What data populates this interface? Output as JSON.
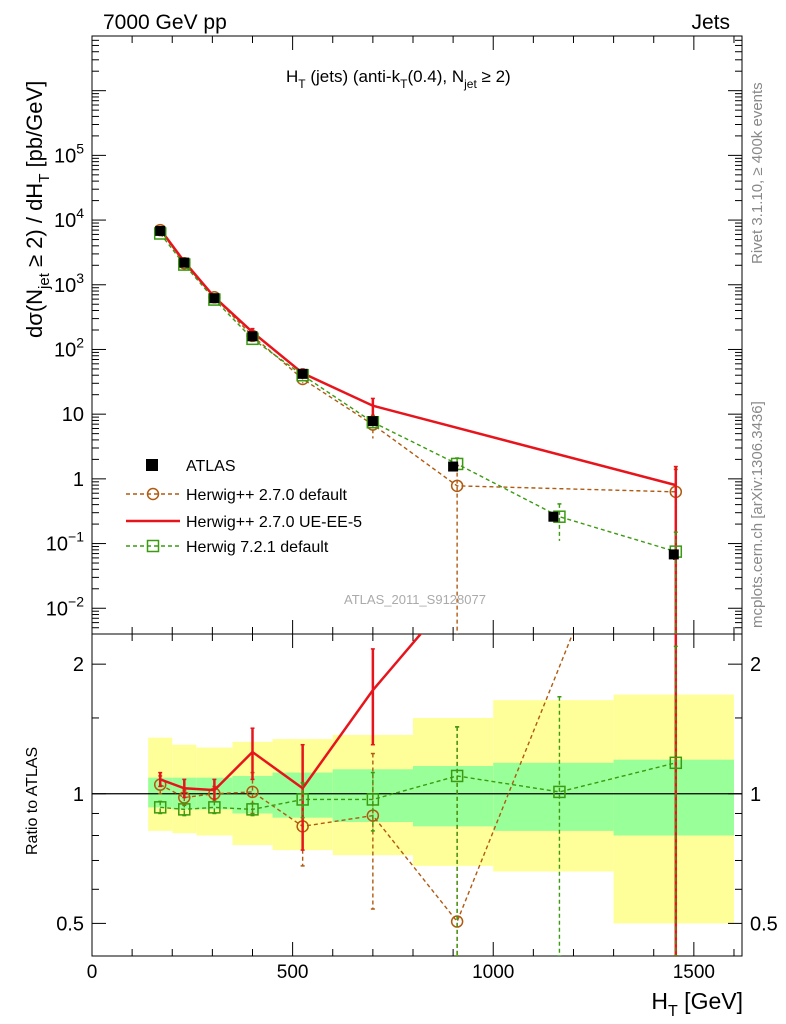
{
  "header": {
    "left": "7000 GeV pp",
    "right": "Jets"
  },
  "side_labels": {
    "rivet": "Rivet 3.1.10, ≥ 400k events",
    "mcplots": "mcplots.cern.ch [arXiv:1306.3436]"
  },
  "watermark": "ATLAS_2011_S9128077",
  "chart_data": {
    "type": "line",
    "title_parts": {
      "a": "H",
      "a_sub": "T",
      "b": " (jets) (anti-k",
      "b_sub": "T",
      "c": "(0.4), N",
      "c_sub": "jet",
      "d": " ≥ 2)"
    },
    "ylabel_parts": {
      "a": "dσ(N",
      "a_sub": "jet",
      "b": " ≥ 2) / dH",
      "b_sub": "T",
      "c": " [pb/GeV]"
    },
    "xlabel_parts": {
      "a": "H",
      "a_sub": "T",
      "b": " [GeV]"
    },
    "ratio_ylabel": "Ratio to ATLAS",
    "x_range": [
      0,
      1620
    ],
    "x_ticks": [
      {
        "v": 0,
        "label": "0"
      },
      {
        "v": 500,
        "label": "500"
      },
      {
        "v": 1000,
        "label": "1000"
      },
      {
        "v": 1500,
        "label": "1500"
      }
    ],
    "y_scale": "log",
    "y_range": [
      0.004,
      7000000
    ],
    "y_ticks": [
      {
        "v": 0.01,
        "base": "10",
        "exp": "−2"
      },
      {
        "v": 0.1,
        "base": "10",
        "exp": "−1"
      },
      {
        "v": 1,
        "base": "1",
        "exp": ""
      },
      {
        "v": 10,
        "base": "10",
        "exp": ""
      },
      {
        "v": 100,
        "base": "10",
        "exp": "2"
      },
      {
        "v": 1000,
        "base": "10",
        "exp": "3"
      },
      {
        "v": 10000,
        "base": "10",
        "exp": "4"
      },
      {
        "v": 100000,
        "base": "10",
        "exp": "5"
      }
    ],
    "ratio_range": [
      0.42,
      2.35
    ],
    "ratio_ticks": [
      {
        "v": 0.5,
        "label": "0.5"
      },
      {
        "v": 1,
        "label": "1"
      },
      {
        "v": 2,
        "label": "2"
      }
    ],
    "bins": [
      {
        "lo": 140,
        "hi": 200
      },
      {
        "lo": 200,
        "hi": 260
      },
      {
        "lo": 260,
        "hi": 350
      },
      {
        "lo": 350,
        "hi": 450
      },
      {
        "lo": 450,
        "hi": 600
      },
      {
        "lo": 600,
        "hi": 800
      },
      {
        "lo": 800,
        "hi": 1000
      },
      {
        "lo": 1000,
        "hi": 1300
      },
      {
        "lo": 1300,
        "hi": 1600
      }
    ],
    "band_inner": [
      [
        0.93,
        1.09
      ],
      [
        0.92,
        1.09
      ],
      [
        0.92,
        1.09
      ],
      [
        0.9,
        1.1
      ],
      [
        0.88,
        1.12
      ],
      [
        0.86,
        1.14
      ],
      [
        0.84,
        1.16
      ],
      [
        0.82,
        1.18
      ],
      [
        0.8,
        1.2
      ]
    ],
    "band_outer": [
      [
        0.82,
        1.35
      ],
      [
        0.81,
        1.3
      ],
      [
        0.8,
        1.28
      ],
      [
        0.76,
        1.32
      ],
      [
        0.74,
        1.34
      ],
      [
        0.72,
        1.37
      ],
      [
        0.68,
        1.5
      ],
      [
        0.66,
        1.65
      ],
      [
        0.5,
        1.7
      ]
    ],
    "data": {
      "name": "ATLAS",
      "x": [
        170,
        230,
        305,
        400,
        525,
        700,
        900,
        1150,
        1450
      ],
      "y": [
        6800,
        2200,
        620,
        160,
        42,
        7.8,
        1.55,
        0.26,
        0.068
      ],
      "err": [
        300,
        80,
        25,
        8,
        3,
        0.6,
        0.16,
        0.03,
        0.012
      ]
    },
    "series": [
      {
        "name": "Herwig++ 2.7.0 default",
        "color": "#b05a10",
        "dash": "4,3",
        "marker": "circle",
        "x": [
          170,
          230,
          305,
          400,
          525,
          700,
          910,
          1455
        ],
        "y": [
          7000,
          2150,
          640,
          162,
          35,
          6.9,
          0.78,
          0.63
        ],
        "y_err": [
          [
            6600,
            7400
          ],
          [
            2050,
            2250
          ],
          [
            610,
            670
          ],
          [
            150,
            174
          ],
          [
            30,
            40
          ],
          [
            4.2,
            9.6
          ],
          [
            0.004,
            1.6
          ],
          [
            0.004,
            1.4
          ]
        ],
        "ratio": [
          1.05,
          0.98,
          1.0,
          1.01,
          0.84,
          0.89,
          0.505,
          9.3
        ],
        "ratio_err": [
          [
            1.0,
            1.1
          ],
          [
            0.94,
            1.02
          ],
          [
            0.96,
            1.04
          ],
          [
            0.9,
            1.12
          ],
          [
            0.68,
            1.0
          ],
          [
            0.54,
            1.24
          ],
          [
            0.42,
            1.43
          ],
          [
            0.42,
            9.3
          ]
        ]
      },
      {
        "name": "Herwig++ 2.7.0 UE-EE-5",
        "color": "#e8141c",
        "dash": "",
        "marker": "none",
        "x": [
          170,
          230,
          305,
          400,
          525,
          700,
          1455
        ],
        "y": [
          7200,
          2280,
          645,
          185,
          43,
          13.5,
          0.8
        ],
        "y_err": [
          [
            6900,
            7500
          ],
          [
            2200,
            2360
          ],
          [
            615,
            675
          ],
          [
            160,
            210
          ],
          [
            36,
            50
          ],
          [
            9.5,
            17.5
          ],
          [
            0.004,
            1.55
          ]
        ],
        "ratio": [
          1.08,
          1.03,
          1.02,
          1.25,
          1.03,
          1.74,
          11.7
        ],
        "ratio_err": [
          [
            1.04,
            1.12
          ],
          [
            0.98,
            1.08
          ],
          [
            0.96,
            1.08
          ],
          [
            1.08,
            1.42
          ],
          [
            0.74,
            1.3
          ],
          [
            1.3,
            2.17
          ],
          [
            0.42,
            11.7
          ]
        ]
      },
      {
        "name": "Herwig 7.2.1 default",
        "color": "#3a9a10",
        "dash": "4,3",
        "marker": "square",
        "x": [
          170,
          230,
          305,
          400,
          525,
          700,
          910,
          1165,
          1455
        ],
        "y": [
          6200,
          2050,
          590,
          146,
          40,
          7.5,
          1.7,
          0.26,
          0.075
        ],
        "y_err": [
          [
            6000,
            6400
          ],
          [
            1980,
            2120
          ],
          [
            570,
            610
          ],
          [
            138,
            154
          ],
          [
            37,
            43
          ],
          [
            6.4,
            8.6
          ],
          [
            1.3,
            2.1
          ],
          [
            0.11,
            0.41
          ],
          [
            0.004,
            0.15
          ]
        ],
        "ratio": [
          0.93,
          0.92,
          0.93,
          0.92,
          0.97,
          0.97,
          1.1,
          1.01,
          1.18
        ],
        "ratio_err": [
          [
            0.9,
            0.96
          ],
          [
            0.89,
            0.95
          ],
          [
            0.9,
            0.96
          ],
          [
            0.89,
            0.95
          ],
          [
            0.88,
            1.06
          ],
          [
            0.82,
            1.12
          ],
          [
            0.42,
            1.43
          ],
          [
            0.42,
            1.68
          ],
          [
            0.42,
            2.2
          ]
        ]
      }
    ],
    "legend_position": "lower-left"
  }
}
